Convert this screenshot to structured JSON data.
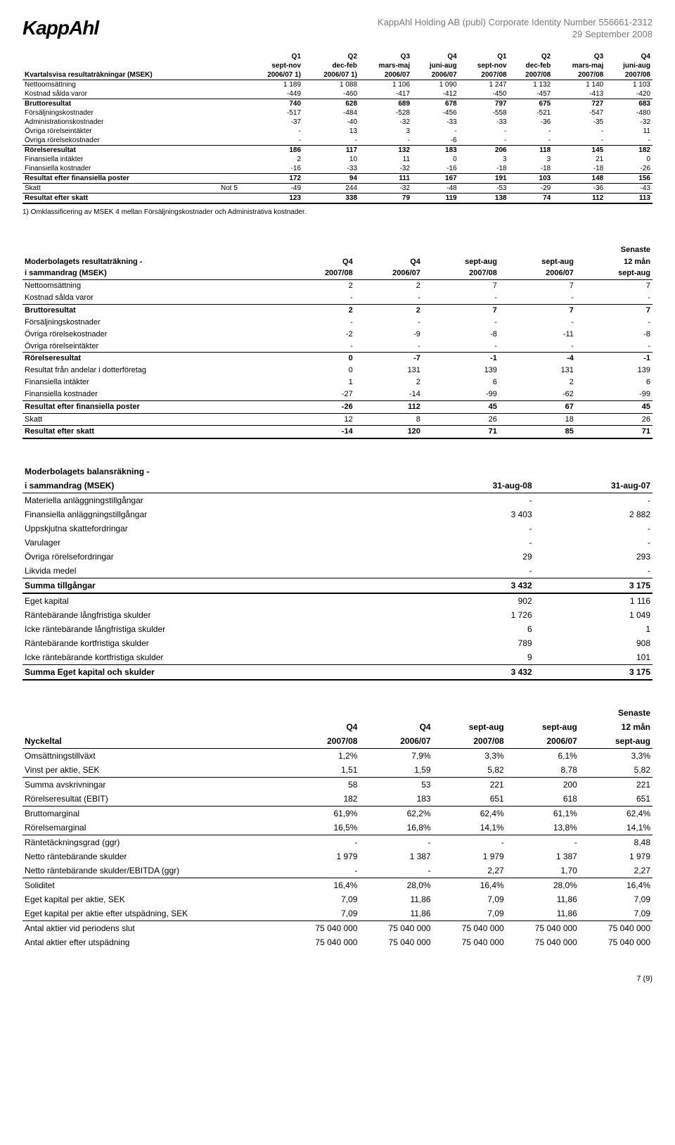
{
  "page": {
    "logo": "KappAhl",
    "corp_line": "KappAhl Holding AB (publ) Corporate Identity Number 556661-2312",
    "date_line": "29 September 2008",
    "footer": "7 (9)"
  },
  "table1": {
    "header": {
      "title": "Kvartalsvisa resultaträkningar (MSEK)",
      "cols": [
        {
          "top": "Q1",
          "mid": "sept-nov",
          "bot": "2006/07 1)"
        },
        {
          "top": "Q2",
          "mid": "dec-feb",
          "bot": "2006/07 1)"
        },
        {
          "top": "Q3",
          "mid": "mars-maj",
          "bot": "2006/07"
        },
        {
          "top": "Q4",
          "mid": "juni-aug",
          "bot": "2006/07"
        },
        {
          "top": "Q1",
          "mid": "sept-nov",
          "bot": "2007/08"
        },
        {
          "top": "Q2",
          "mid": "dec-feb",
          "bot": "2007/08"
        },
        {
          "top": "Q3",
          "mid": "mars-maj",
          "bot": "2007/08"
        },
        {
          "top": "Q4",
          "mid": "juni-aug",
          "bot": "2007/08"
        }
      ]
    },
    "rows": [
      {
        "label": "Nettoomsättning",
        "v": [
          "1 189",
          "1 088",
          "1 106",
          "1 090",
          "1 247",
          "1 132",
          "1 140",
          "1 103"
        ]
      },
      {
        "label": "Kostnad sålda varor",
        "v": [
          "-449",
          "-460",
          "-417",
          "-412",
          "-450",
          "-457",
          "-413",
          "-420"
        ],
        "bb": true
      },
      {
        "label": "Bruttoresultat",
        "bold": true,
        "v": [
          "740",
          "628",
          "689",
          "678",
          "797",
          "675",
          "727",
          "683"
        ]
      },
      {
        "label": "Försäljningskostnader",
        "v": [
          "-517",
          "-484",
          "-528",
          "-456",
          "-558",
          "-521",
          "-547",
          "-480"
        ]
      },
      {
        "label": "Administrationskostnader",
        "v": [
          "-37",
          "-40",
          "-32",
          "-33",
          "-33",
          "-36",
          "-35",
          "-32"
        ]
      },
      {
        "label": "Övriga rörelseintäkter",
        "v": [
          "-",
          "13",
          "3",
          "-",
          "-",
          "-",
          "-",
          "11"
        ]
      },
      {
        "label": "Övriga rörelsekostnader",
        "v": [
          "-",
          "-",
          "-",
          "-6",
          "-",
          "-",
          "-",
          "-"
        ],
        "bb": true
      },
      {
        "label": "Rörelseresultat",
        "bold": true,
        "v": [
          "186",
          "117",
          "132",
          "183",
          "206",
          "118",
          "145",
          "182"
        ]
      },
      {
        "label": "Finansiella intäkter",
        "v": [
          "2",
          "10",
          "11",
          "0",
          "3",
          "3",
          "21",
          "0"
        ]
      },
      {
        "label": "Finansiella kostnader",
        "v": [
          "-16",
          "-33",
          "-32",
          "-16",
          "-18",
          "-18",
          "-18",
          "-26"
        ],
        "bb": true
      },
      {
        "label": "Resultat efter finansiella poster",
        "bold": true,
        "v": [
          "172",
          "94",
          "111",
          "167",
          "191",
          "103",
          "148",
          "156"
        ]
      },
      {
        "label": "Skatt",
        "note": "Not 5",
        "v": [
          "-49",
          "244",
          "-32",
          "-48",
          "-53",
          "-29",
          "-36",
          "-43"
        ],
        "bb": true,
        "bt": true
      },
      {
        "label": "Resultat efter skatt",
        "bold": true,
        "v": [
          "123",
          "338",
          "79",
          "119",
          "138",
          "74",
          "112",
          "113"
        ],
        "bbthick": true
      }
    ],
    "footnote": "1) Omklassificering av MSEK 4 mellan Försäljningskostnader och Administrativa kostnader."
  },
  "table2": {
    "header": {
      "title1": "Moderbolagets resultaträkning -",
      "title2": "i sammandrag (MSEK)",
      "cols": [
        {
          "top": "",
          "mid": "Q4",
          "bot": "2007/08"
        },
        {
          "top": "",
          "mid": "Q4",
          "bot": "2006/07"
        },
        {
          "top": "",
          "mid": "sept-aug",
          "bot": "2007/08"
        },
        {
          "top": "",
          "mid": "sept-aug",
          "bot": "2006/07"
        },
        {
          "top": "Senaste",
          "mid": "12 mån",
          "bot": "sept-aug"
        }
      ]
    },
    "rows": [
      {
        "label": "Nettoomsättning",
        "v": [
          "2",
          "2",
          "7",
          "7",
          "7"
        ]
      },
      {
        "label": "Kostnad sålda varor",
        "v": [
          "-",
          "-",
          "-",
          "-",
          "-"
        ],
        "bb": true
      },
      {
        "label": "Bruttoresultat",
        "bold": true,
        "v": [
          "2",
          "2",
          "7",
          "7",
          "7"
        ]
      },
      {
        "label": "Försäljningskostnader",
        "v": [
          "-",
          "-",
          "-",
          "-",
          "-"
        ]
      },
      {
        "label": "Övriga rörelsekostnader",
        "v": [
          "-2",
          "-9",
          "-8",
          "-11",
          "-8"
        ]
      },
      {
        "label": "Övriga rörelseintäkter",
        "v": [
          "-",
          "-",
          "-",
          "-",
          "-"
        ],
        "bb": true
      },
      {
        "label": "Rörelseresultat",
        "bold": true,
        "v": [
          "0",
          "-7",
          "-1",
          "-4",
          "-1"
        ]
      },
      {
        "label": "Resultat från andelar i dotterföretag",
        "v": [
          "0",
          "131",
          "139",
          "131",
          "139"
        ]
      },
      {
        "label": "Finansiella intäkter",
        "v": [
          "1",
          "2",
          "6",
          "2",
          "6"
        ]
      },
      {
        "label": "Finansiella kostnader",
        "v": [
          "-27",
          "-14",
          "-99",
          "-62",
          "-99"
        ],
        "bb": true
      },
      {
        "label": "Resultat efter finansiella poster",
        "bold": true,
        "v": [
          "-26",
          "112",
          "45",
          "67",
          "45"
        ]
      },
      {
        "label": "Skatt",
        "v": [
          "12",
          "8",
          "26",
          "18",
          "26"
        ],
        "bb": true,
        "bt": true
      },
      {
        "label": "Resultat efter skatt",
        "bold": true,
        "v": [
          "-14",
          "120",
          "71",
          "85",
          "71"
        ],
        "bbthick": true,
        "bt": true
      }
    ]
  },
  "table3": {
    "header": {
      "title1": "Moderbolagets balansräkning -",
      "title2": " i sammandrag (MSEK)",
      "cols": [
        "31-aug-08",
        "31-aug-07"
      ]
    },
    "rows": [
      {
        "label": "Materiella anläggningstillgångar",
        "v": [
          "-",
          "-"
        ]
      },
      {
        "label": "Finansiella anläggningstillgångar",
        "v": [
          "3 403",
          "2 882"
        ]
      },
      {
        "label": "Uppskjutna skattefordringar",
        "v": [
          "-",
          "-"
        ]
      },
      {
        "label": "Varulager",
        "v": [
          "-",
          "-"
        ]
      },
      {
        "label": "Övriga rörelsefordringar",
        "v": [
          "29",
          "293"
        ]
      },
      {
        "label": "Likvida medel",
        "v": [
          "-",
          "-"
        ],
        "bb": true
      },
      {
        "label": "Summa tillgångar",
        "bold": true,
        "v": [
          "3 432",
          "3 175"
        ],
        "bbthick": true
      },
      {
        "label": "Eget kapital",
        "v": [
          "902",
          "1 116"
        ]
      },
      {
        "label": "Räntebärande långfristiga skulder",
        "v": [
          "1 726",
          "1 049"
        ]
      },
      {
        "label": "Icke räntebärande långfristiga skulder",
        "v": [
          "6",
          "1"
        ]
      },
      {
        "label": "Räntebärande kortfristiga skulder",
        "v": [
          "789",
          "908"
        ]
      },
      {
        "label": "Icke räntebärande kortfristiga skulder",
        "v": [
          "9",
          "101"
        ],
        "bb": true
      },
      {
        "label": "Summa Eget kapital och skulder",
        "bold": true,
        "v": [
          "3 432",
          "3 175"
        ],
        "bbthick": true
      }
    ]
  },
  "table4": {
    "header": {
      "title": "Nyckeltal",
      "cols": [
        {
          "top": "",
          "mid": "Q4",
          "bot": "2007/08"
        },
        {
          "top": "",
          "mid": "Q4",
          "bot": "2006/07"
        },
        {
          "top": "",
          "mid": "sept-aug",
          "bot": "2007/08"
        },
        {
          "top": "",
          "mid": "sept-aug",
          "bot": "2006/07"
        },
        {
          "top": "Senaste",
          "mid": "12 mån",
          "bot": "sept-aug"
        }
      ]
    },
    "rows": [
      {
        "label": "Omsättningstillväxt",
        "v": [
          "1,2%",
          "7,9%",
          "3,3%",
          "6,1%",
          "3,3%"
        ]
      },
      {
        "label": "Vinst per aktie, SEK",
        "v": [
          "1,51",
          "1,59",
          "5,82",
          "8,78",
          "5,82"
        ],
        "bb": true
      },
      {
        "label": "Summa avskrivningar",
        "v": [
          "58",
          "53",
          "221",
          "200",
          "221"
        ]
      },
      {
        "label": "Rörelseresultat (EBIT)",
        "v": [
          "182",
          "183",
          "651",
          "618",
          "651"
        ],
        "bb": true
      },
      {
        "label": "Bruttomarginal",
        "v": [
          "61,9%",
          "62,2%",
          "62,4%",
          "61,1%",
          "62,4%"
        ]
      },
      {
        "label": "Rörelsemarginal",
        "v": [
          "16,5%",
          "16,8%",
          "14,1%",
          "13,8%",
          "14,1%"
        ],
        "bb": true
      },
      {
        "label": "Räntetäckningsgrad (ggr)",
        "v": [
          "-",
          "-",
          "-",
          "-",
          "8,48"
        ]
      },
      {
        "label": "Netto räntebärande skulder",
        "v": [
          "1 979",
          "1 387",
          "1 979",
          "1 387",
          "1 979"
        ]
      },
      {
        "label": "Netto räntebärande skulder/EBITDA (ggr)",
        "v": [
          "-",
          "-",
          "2,27",
          "1,70",
          "2,27"
        ],
        "bb": true
      },
      {
        "label": "Soliditet",
        "v": [
          "16,4%",
          "28,0%",
          "16,4%",
          "28,0%",
          "16,4%"
        ]
      },
      {
        "label": "Eget kapital per aktie, SEK",
        "v": [
          "7,09",
          "11,86",
          "7,09",
          "11,86",
          "7,09"
        ]
      },
      {
        "label": "Eget kapital per aktie efter utspädning, SEK",
        "v": [
          "7,09",
          "11,86",
          "7,09",
          "11,86",
          "7,09"
        ],
        "bb": true
      },
      {
        "label": "Antal aktier vid periodens slut",
        "v": [
          "75 040 000",
          "75 040 000",
          "75 040 000",
          "75 040 000",
          "75 040 000"
        ]
      },
      {
        "label": "Antal aktier efter utspädning",
        "v": [
          "75 040 000",
          "75 040 000",
          "75 040 000",
          "75 040 000",
          "75 040 000"
        ]
      }
    ]
  }
}
